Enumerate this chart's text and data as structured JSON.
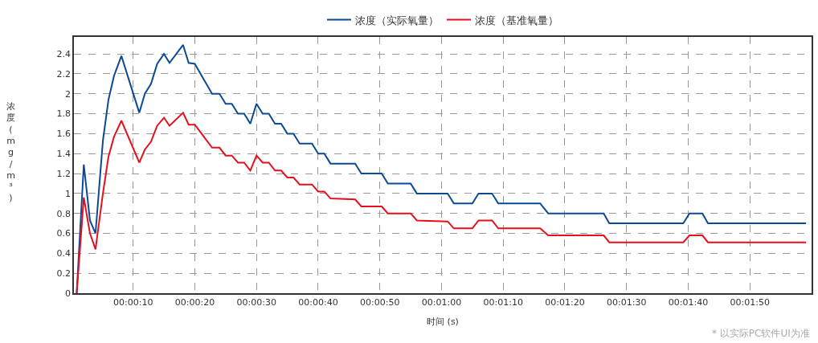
{
  "chart_data": {
    "type": "line",
    "xlabel": "时间 (s)",
    "ylabel": "浓度(mg/m³)",
    "x": [
      0.85,
      2,
      3,
      3.9,
      5.1,
      6,
      6.9,
      8.1,
      11,
      11.9,
      12.9,
      13.9,
      15,
      15.9,
      18.1,
      19,
      20,
      22.8,
      24,
      25,
      26,
      27,
      28,
      29,
      30,
      31,
      32,
      33,
      34,
      35,
      36,
      37,
      39,
      40,
      41,
      42,
      46,
      47,
      50.3,
      51.3,
      55,
      56,
      61,
      62,
      65,
      66,
      68.2,
      69.2,
      76,
      77.3,
      86.3,
      87.2,
      99.2,
      100.2,
      102.3,
      103.2,
      119.1
    ],
    "series": [
      {
        "name": "浓度（实际氧量）",
        "color": "#0d4a94",
        "values": [
          0,
          1.29,
          0.73,
          0.6,
          1.53,
          1.94,
          2.18,
          2.38,
          1.81,
          2.0,
          2.1,
          2.3,
          2.4,
          2.31,
          2.49,
          2.31,
          2.3,
          2.0,
          2.0,
          1.9,
          1.9,
          1.8,
          1.8,
          1.7,
          1.9,
          1.8,
          1.8,
          1.7,
          1.7,
          1.6,
          1.6,
          1.5,
          1.5,
          1.4,
          1.4,
          1.3,
          1.3,
          1.2,
          1.2,
          1.1,
          1.1,
          1.0,
          1.0,
          0.9,
          0.9,
          1.0,
          1.0,
          0.9,
          0.9,
          0.8,
          0.8,
          0.7,
          0.7,
          0.8,
          0.8,
          0.7,
          0.7
        ]
      },
      {
        "name": "浓度（基准氧量）",
        "color": "#e60f1e",
        "values": [
          0,
          0.96,
          0.6,
          0.44,
          1.0,
          1.37,
          1.57,
          1.73,
          1.31,
          1.44,
          1.52,
          1.68,
          1.76,
          1.68,
          1.81,
          1.69,
          1.69,
          1.46,
          1.46,
          1.38,
          1.38,
          1.31,
          1.31,
          1.23,
          1.38,
          1.31,
          1.31,
          1.23,
          1.23,
          1.16,
          1.16,
          1.09,
          1.09,
          1.02,
          1.02,
          0.95,
          0.94,
          0.87,
          0.87,
          0.8,
          0.8,
          0.73,
          0.72,
          0.65,
          0.65,
          0.73,
          0.73,
          0.65,
          0.65,
          0.58,
          0.58,
          0.51,
          0.51,
          0.58,
          0.58,
          0.51,
          0.51
        ]
      }
    ],
    "xlim": [
      0.4,
      120
    ],
    "xticks": [
      {
        "value": 10,
        "label": "00:00:10"
      },
      {
        "value": 20,
        "label": "00:00:20"
      },
      {
        "value": 30,
        "label": "00:00:30"
      },
      {
        "value": 40,
        "label": "00:00:40"
      },
      {
        "value": 50,
        "label": "00:00:50"
      },
      {
        "value": 60,
        "label": "00:01:00"
      },
      {
        "value": 70,
        "label": "00:01:10"
      },
      {
        "value": 80,
        "label": "00:01:20"
      },
      {
        "value": 90,
        "label": "00:01:30"
      },
      {
        "value": 100,
        "label": "00:01:40"
      },
      {
        "value": 110,
        "label": "00:01:50"
      }
    ],
    "ylim": [
      0,
      2.57
    ],
    "yticks": [
      0,
      0.2,
      0.4,
      0.6,
      0.8,
      1,
      1.2,
      1.4,
      1.6,
      1.8,
      2,
      2.2,
      2.4
    ],
    "grid": true,
    "legend": "top",
    "marker": "none",
    "line_style": "solid",
    "annotations": [
      "* 以实际PC软件UI为准"
    ]
  }
}
